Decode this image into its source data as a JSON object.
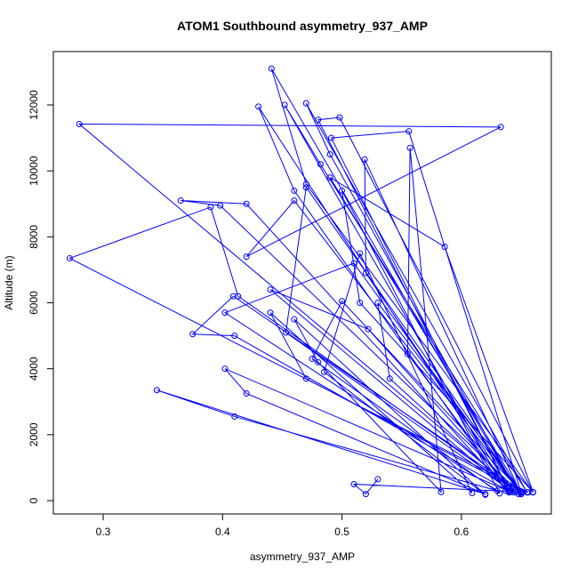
{
  "chart_data": {
    "type": "line",
    "title": "ATOM1 Southbound asymmetry_937_AMP",
    "x_label": "asymmetry_937_AMP",
    "y_label": "Altitude (m)",
    "xlim": [
      0.2583,
      0.6753
    ],
    "ylim": [
      -404,
      13618
    ],
    "xticks": [
      0.3,
      0.4,
      0.5,
      0.6
    ],
    "yticks": [
      0,
      2000,
      4000,
      6000,
      8000,
      10000,
      12000
    ],
    "series": [
      {
        "name": "asymmetry_937_AMP",
        "color": "#0000ff",
        "x": [
          0.656,
          0.272,
          0.39,
          0.413,
          0.645,
          0.28,
          0.633,
          0.42,
          0.46,
          0.65,
          0.398,
          0.365,
          0.42,
          0.64,
          0.43,
          0.46,
          0.637,
          0.452,
          0.482,
          0.655,
          0.47,
          0.49,
          0.648,
          0.441,
          0.47,
          0.66,
          0.498,
          0.48,
          0.64,
          0.491,
          0.556,
          0.65,
          0.409,
          0.375,
          0.41,
          0.64,
          0.402,
          0.42,
          0.62,
          0.345,
          0.41,
          0.63,
          0.402,
          0.51,
          0.65,
          0.519,
          0.52,
          0.643,
          0.453,
          0.47,
          0.65,
          0.49,
          0.586,
          0.66,
          0.515,
          0.5,
          0.632,
          0.475,
          0.5,
          0.65,
          0.53,
          0.54,
          0.645,
          0.522,
          0.44,
          0.64,
          0.555,
          0.557,
          0.583,
          0.48,
          0.46,
          0.62,
          0.485,
          0.515,
          0.609,
          0.44,
          0.47,
          0.651,
          0.51,
          0.52,
          0.53
        ],
        "y": [
          250,
          7350,
          8900,
          6200,
          300,
          11420,
          11330,
          7400,
          9100,
          200,
          8950,
          9100,
          9000,
          250,
          11950,
          9400,
          300,
          12000,
          10200,
          250,
          12050,
          10500,
          200,
          13100,
          9600,
          250,
          11620,
          11550,
          300,
          11000,
          11200,
          250,
          6200,
          5050,
          5000,
          280,
          4000,
          3250,
          200,
          3350,
          2550,
          300,
          5700,
          7200,
          200,
          10350,
          6900,
          260,
          5100,
          9500,
          240,
          9800,
          7700,
          260,
          6000,
          9400,
          220,
          4300,
          6050,
          280,
          6000,
          3700,
          250,
          5200,
          6400,
          300,
          4450,
          10700,
          260,
          4200,
          5500,
          180,
          3900,
          7500,
          230,
          5700,
          3700,
          260,
          500,
          200,
          650
        ]
      }
    ]
  }
}
